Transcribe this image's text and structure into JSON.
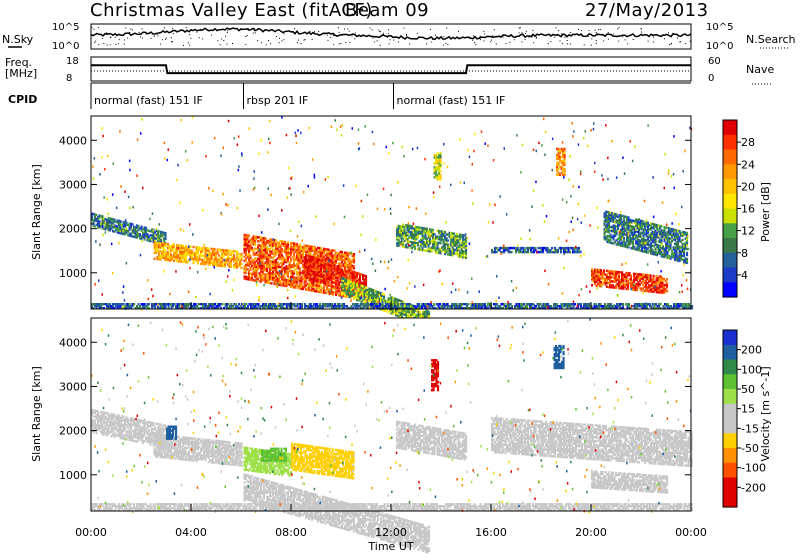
{
  "header": {
    "title": "Christmas Valley East (fitACF)",
    "beam": "Beam 09",
    "date": "27/May/2013"
  },
  "nsky_panel": {
    "left_label": "N.Sky",
    "right_label": "N.Search",
    "left_ticks": [
      "10^5",
      "10^0"
    ],
    "right_ticks": [
      "10^5",
      "10^0"
    ]
  },
  "freq_panel": {
    "left_label_1": "Freq.",
    "left_label_2": "[MHz]",
    "right_label": "Nave",
    "left_ticks": [
      "18",
      "8"
    ],
    "right_ticks": [
      "60",
      "0"
    ],
    "freq_x": [
      0,
      3,
      3.05,
      15,
      15.05,
      24
    ],
    "freq_mhz": [
      14.6,
      14.6,
      11.3,
      11.3,
      14.6,
      14.6
    ]
  },
  "cpid": {
    "label": "CPID",
    "segments": [
      {
        "start": 0,
        "end": 6.1,
        "text": "normal (fast) 151 IF"
      },
      {
        "start": 6.1,
        "end": 12.1,
        "text": "rbsp 201 IF"
      },
      {
        "start": 12.1,
        "end": 24,
        "text": "normal (fast) 151 IF"
      }
    ]
  },
  "x_axis": {
    "label": "Time UT",
    "ticks": [
      "00:00",
      "04:00",
      "08:00",
      "12:00",
      "16:00",
      "20:00",
      "00:00"
    ],
    "tick_hours": [
      0,
      4,
      8,
      12,
      16,
      20,
      24
    ]
  },
  "power_colorbar": {
    "label": "Power [dB]",
    "ticks": [
      "28",
      "24",
      "20",
      "16",
      "12",
      "8",
      "4"
    ],
    "colors": [
      "#e00000",
      "#ff3000",
      "#ff6a00",
      "#ff9b00",
      "#ffc200",
      "#ffe600",
      "#c9e000",
      "#48a048",
      "#3a7a4a",
      "#24609a",
      "#1c3cc8",
      "#0000ff"
    ]
  },
  "velocity_colorbar": {
    "label": "Velocity [m s^-1]",
    "ticks": [
      "200",
      "100",
      "50",
      "15",
      "-15",
      "-50",
      "-100",
      "-200"
    ],
    "colors": [
      "#1a2fd0",
      "#1f5fa0",
      "#2f8a4a",
      "#5ec032",
      "#9ee04a",
      "#c8c8c8",
      "#c8c8c8",
      "#ffd000",
      "#ff9000",
      "#ff5000",
      "#e00000",
      "#e00000"
    ]
  },
  "chart_data": [
    {
      "type": "heatmap",
      "title": "Christmas Valley East (fitACF) Beam 09 27/May/2013",
      "xlabel": "Time UT",
      "ylabel": "Slant Range [km]",
      "ylim": [
        180,
        4550
      ],
      "xlim": [
        0,
        24
      ],
      "yticks": [
        1000,
        2000,
        3000,
        4000
      ],
      "colorbar": "Power [dB]",
      "regions": [
        {
          "t0": 0.0,
          "t1": 3.0,
          "r0": 2050,
          "r1": 2350,
          "value": 8,
          "slope": -150
        },
        {
          "t0": 2.5,
          "t1": 6.0,
          "r0": 1300,
          "r1": 1700,
          "value": 20,
          "slope": -60
        },
        {
          "t0": 6.1,
          "t1": 10.5,
          "r0": 850,
          "r1": 1850,
          "value": 24,
          "slope": -100
        },
        {
          "t0": 8.5,
          "t1": 11.0,
          "r0": 900,
          "r1": 1400,
          "value": 28,
          "slope": -200
        },
        {
          "t0": 10.0,
          "t1": 13.5,
          "r0": 500,
          "r1": 900,
          "value": 12,
          "slope": -220
        },
        {
          "t0": 12.2,
          "t1": 15.0,
          "r0": 1600,
          "r1": 2100,
          "value": 10,
          "slope": -100
        },
        {
          "t0": 16.0,
          "t1": 19.5,
          "r0": 1450,
          "r1": 1550,
          "value": 6,
          "slope": 0
        },
        {
          "t0": 20.0,
          "t1": 23.0,
          "r0": 700,
          "r1": 1100,
          "value": 26,
          "slope": -60
        },
        {
          "t0": 20.5,
          "t1": 23.8,
          "r0": 1700,
          "r1": 2400,
          "value": 8,
          "slope": -150
        },
        {
          "t0": 13.7,
          "t1": 14.0,
          "r0": 3100,
          "r1": 3700,
          "value": 14,
          "slope": 0
        },
        {
          "t0": 18.6,
          "t1": 18.9,
          "r0": 3200,
          "r1": 3800,
          "value": 22,
          "slope": 0
        },
        {
          "t0": 0.0,
          "t1": 24.0,
          "r0": 180,
          "r1": 300,
          "value": 6,
          "slope": 0
        }
      ]
    },
    {
      "type": "heatmap",
      "xlabel": "Time UT",
      "ylabel": "Slant Range [km]",
      "ylim": [
        180,
        4550
      ],
      "xlim": [
        0,
        24
      ],
      "yticks": [
        1000,
        2000,
        3000,
        4000
      ],
      "colorbar": "Velocity [m s^-1]",
      "regions": [
        {
          "t0": 0.0,
          "t1": 3.0,
          "r0": 1950,
          "r1": 2450,
          "value": 0,
          "slope": -120
        },
        {
          "t0": 2.5,
          "t1": 6.0,
          "r0": 1400,
          "r1": 1900,
          "value": 0,
          "slope": -60
        },
        {
          "t0": 3.0,
          "t1": 3.4,
          "r0": 1800,
          "r1": 2100,
          "value": 200,
          "slope": 0
        },
        {
          "t0": 6.1,
          "t1": 8.0,
          "r0": 1100,
          "r1": 1600,
          "value": 50,
          "slope": -80
        },
        {
          "t0": 6.8,
          "t1": 7.8,
          "r0": 1300,
          "r1": 1600,
          "value": 100,
          "slope": 0
        },
        {
          "t0": 8.0,
          "t1": 10.5,
          "r0": 1100,
          "r1": 1700,
          "value": -50,
          "slope": -80
        },
        {
          "t0": 6.1,
          "t1": 13.5,
          "r0": 400,
          "r1": 1000,
          "value": 30,
          "slope": -160
        },
        {
          "t0": 12.2,
          "t1": 15.0,
          "r0": 1600,
          "r1": 2200,
          "value": 0,
          "slope": -100
        },
        {
          "t0": 13.6,
          "t1": 13.9,
          "r0": 2900,
          "r1": 3600,
          "value": -200,
          "slope": 0
        },
        {
          "t0": 18.5,
          "t1": 18.9,
          "r0": 3400,
          "r1": 3900,
          "value": 200,
          "slope": 0
        },
        {
          "t0": 16.0,
          "t1": 24.0,
          "r0": 1500,
          "r1": 2300,
          "value": 0,
          "slope": -40
        },
        {
          "t0": 20.0,
          "t1": 23.0,
          "r0": 700,
          "r1": 1100,
          "value": 0,
          "slope": -40
        },
        {
          "t0": 0.0,
          "t1": 24.0,
          "r0": 180,
          "r1": 320,
          "value": -30,
          "slope": 0
        }
      ]
    }
  ]
}
